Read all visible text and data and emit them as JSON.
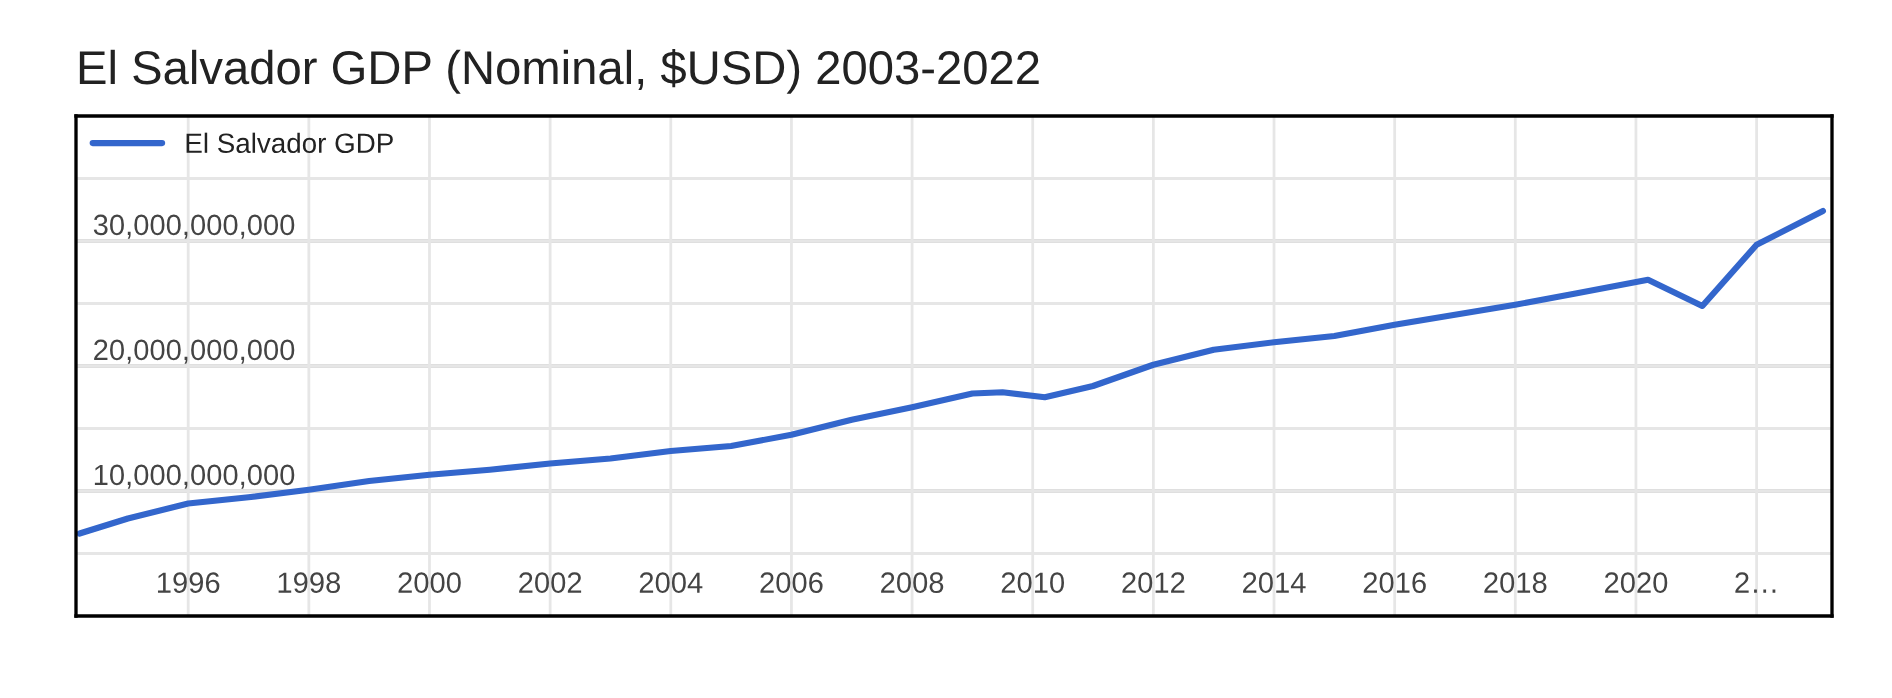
{
  "chart_data": {
    "type": "line",
    "title": "El Salvador GDP (Nominal, $USD) 2003-2022",
    "x": [
      1994.2,
      1995,
      1996,
      1997,
      1998,
      1999,
      2000,
      2001,
      2002,
      2003,
      2004,
      2005,
      2006,
      2007,
      2008,
      2009,
      2009.5,
      2010.2,
      2011,
      2012,
      2013,
      2014,
      2015,
      2016,
      2017,
      2018,
      2019,
      2020.2,
      2021.1,
      2022,
      2023.1
    ],
    "series": [
      {
        "name": "El Salvador GDP",
        "color": "#3366cc",
        "values": [
          6600000000,
          7800000000,
          9000000000,
          9500000000,
          10100000000,
          10800000000,
          11300000000,
          11700000000,
          12200000000,
          12600000000,
          13200000000,
          13600000000,
          14500000000,
          15700000000,
          16700000000,
          17800000000,
          17900000000,
          17500000000,
          18400000000,
          20100000000,
          21300000000,
          21900000000,
          22400000000,
          23300000000,
          24100000000,
          24900000000,
          25800000000,
          26900000000,
          24800000000,
          29700000000,
          32400000000
        ]
      }
    ],
    "xlim": [
      1994.14,
      2023.25
    ],
    "ylim": [
      0,
      40000000000
    ],
    "xticks": [
      1996,
      1998,
      2000,
      2002,
      2004,
      2006,
      2008,
      2010,
      2012,
      2014,
      2016,
      2018,
      2020,
      {
        "value": 2022,
        "label": "2…"
      }
    ],
    "yticks": [
      {
        "value": 5000000000,
        "label": null
      },
      {
        "value": 10000000000,
        "label": "10,000,000,000"
      },
      {
        "value": 15000000000,
        "label": null
      },
      {
        "value": 20000000000,
        "label": "20,000,000,000"
      },
      {
        "value": 25000000000,
        "label": null
      },
      {
        "value": 30000000000,
        "label": "30,000,000,000"
      },
      {
        "value": 35000000000,
        "label": null
      }
    ],
    "grid": true,
    "legend": "top left",
    "line_style": "solid",
    "marker": "none"
  }
}
